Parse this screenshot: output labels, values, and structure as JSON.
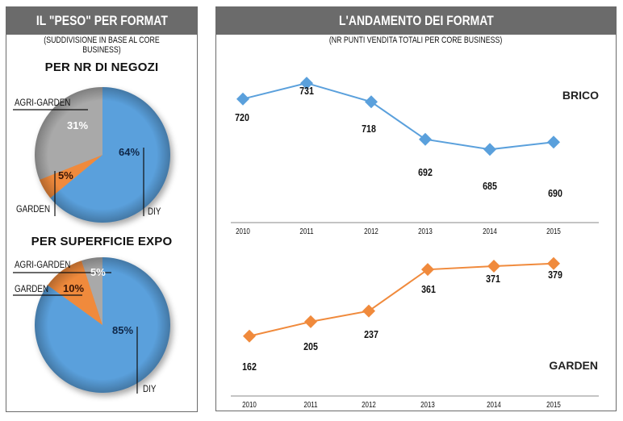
{
  "left": {
    "title": "IL \"PESO\" PER FORMAT",
    "subtitle": "(SUDDIVISIONE IN BASE AL CORE BUSINESS)",
    "pie1_title": "PER NR DI NEGOZI",
    "pie2_title": "PER SUPERFICIE EXPO"
  },
  "right": {
    "title": "L'ANDAMENTO DEI FORMAT",
    "subtitle": "(NR PUNTI VENDITA TOTALI PER CORE BUSINESS)"
  },
  "colors": {
    "header_bg": "#6b6b6b",
    "diy": "#5aa0dc",
    "garden": "#f08a3c",
    "agri_garden": "#a9a9a9",
    "brico_line": "#5aa0dc",
    "garden_line": "#f08a3c"
  },
  "chart_data": [
    {
      "type": "pie",
      "title": "PER NR DI NEGOZI",
      "slices": [
        {
          "name": "DIY",
          "value": 64,
          "label": "64%"
        },
        {
          "name": "GARDEN",
          "value": 5,
          "label": "5%"
        },
        {
          "name": "AGRI-GARDEN",
          "value": 31,
          "label": "31%"
        }
      ]
    },
    {
      "type": "pie",
      "title": "PER SUPERFICIE EXPO",
      "slices": [
        {
          "name": "DIY",
          "value": 85,
          "label": "85%"
        },
        {
          "name": "GARDEN",
          "value": 10,
          "label": "10%"
        },
        {
          "name": "AGRI-GARDEN",
          "value": 5,
          "label": "5%"
        }
      ]
    },
    {
      "type": "line",
      "title": "BRICO",
      "x": [
        "2010",
        "2011",
        "2012",
        "2013",
        "2014",
        "2015"
      ],
      "values": [
        720,
        731,
        718,
        692,
        685,
        690
      ],
      "ylim": [
        670,
        740
      ]
    },
    {
      "type": "line",
      "title": "GARDEN",
      "x": [
        "2010",
        "2011",
        "2012",
        "2013",
        "2014",
        "2015"
      ],
      "values": [
        162,
        205,
        237,
        361,
        371,
        379
      ],
      "ylim": [
        130,
        400
      ]
    }
  ]
}
